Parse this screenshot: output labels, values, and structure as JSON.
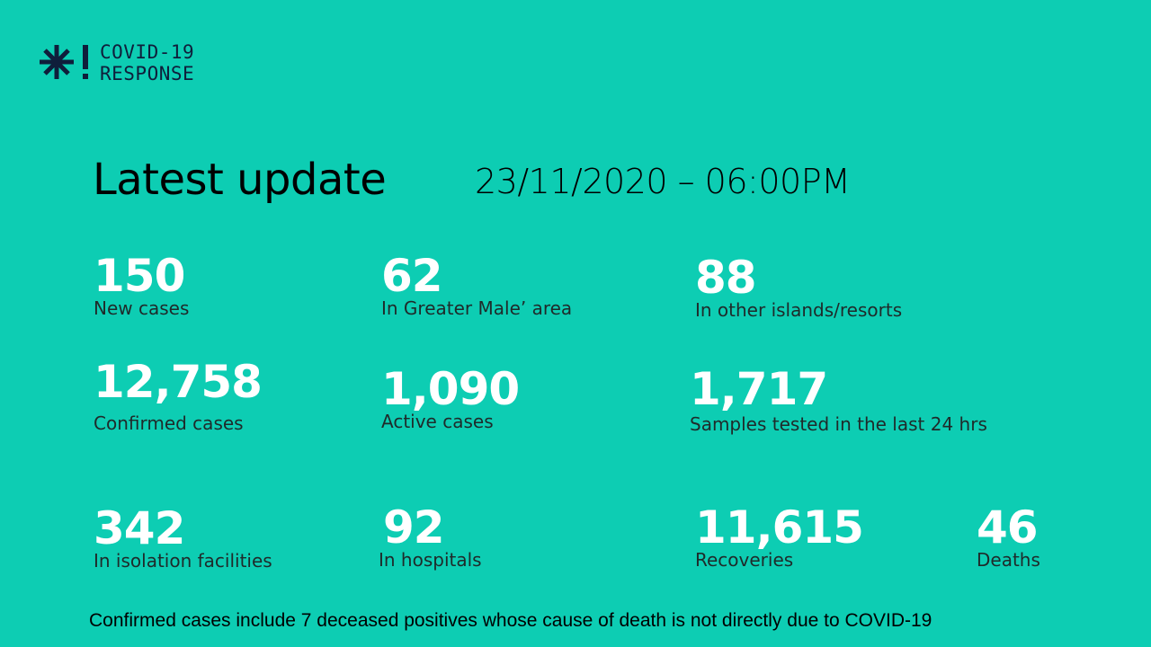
{
  "brand": {
    "line1": "COVID-19",
    "line2": "RESPONSE",
    "color": "#0f1e3b",
    "icon": "snowflake-exclamation-logo"
  },
  "header": {
    "title": "Latest update",
    "datetime": "23/11/2020 – 06:00PM"
  },
  "stats": [
    {
      "value": "150",
      "label": "New cases"
    },
    {
      "value": "62",
      "label": "In Greater Male’ area"
    },
    {
      "value": "88",
      "label": "In other islands/resorts"
    },
    {
      "value": "12,758",
      "label": "Confirmed cases"
    },
    {
      "value": "1,090",
      "label": "Active cases"
    },
    {
      "value": "1,717",
      "label": "Samples tested in the last 24 hrs"
    },
    {
      "value": "342",
      "label": "In isolation facilities"
    },
    {
      "value": "92",
      "label": "In hospitals"
    },
    {
      "value": "11,615",
      "label": "Recoveries"
    },
    {
      "value": "46",
      "label": "Deaths"
    }
  ],
  "footnote": "Confirmed cases include 7 deceased positives whose cause of death is not directly due to COVID-19",
  "colors": {
    "background": "#0dcdb3",
    "value": "#ffffff"
  }
}
